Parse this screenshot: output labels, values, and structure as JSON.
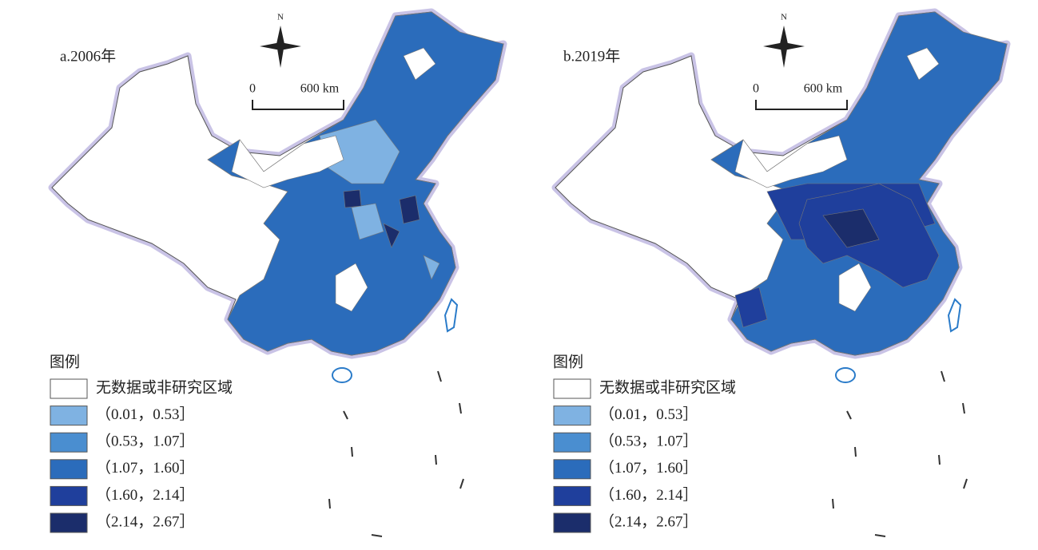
{
  "panels": [
    {
      "title": "a.2006年",
      "north": "N",
      "scale": {
        "start": "0",
        "end": "600 km"
      },
      "legend": {
        "title": "图例",
        "items": [
          {
            "label": "无数据或非研究区域",
            "color": "#ffffff"
          },
          {
            "label": "（0.01，0.53］",
            "color": "#7fb2e2"
          },
          {
            "label": "（0.53，1.07］",
            "color": "#4a8ed0"
          },
          {
            "label": "（1.07，1.60］",
            "color": "#2b6cbb"
          },
          {
            "label": "（1.60，2.14］",
            "color": "#1f3f9c"
          },
          {
            "label": "（2.14，2.67］",
            "color": "#1b2d6b"
          }
        ]
      }
    },
    {
      "title": "b.2019年",
      "north": "N",
      "scale": {
        "start": "0",
        "end": "600 km"
      },
      "legend": {
        "title": "图例",
        "items": [
          {
            "label": "无数据或非研究区域",
            "color": "#ffffff"
          },
          {
            "label": "（0.01，0.53］",
            "color": "#7fb2e2"
          },
          {
            "label": "（0.53，1.07］",
            "color": "#4a8ed0"
          },
          {
            "label": "（1.07，1.60］",
            "color": "#2b6cbb"
          },
          {
            "label": "（1.60，2.14］",
            "color": "#1f3f9c"
          },
          {
            "label": "（2.14，2.67］",
            "color": "#1b2d6b"
          }
        ]
      }
    }
  ]
}
